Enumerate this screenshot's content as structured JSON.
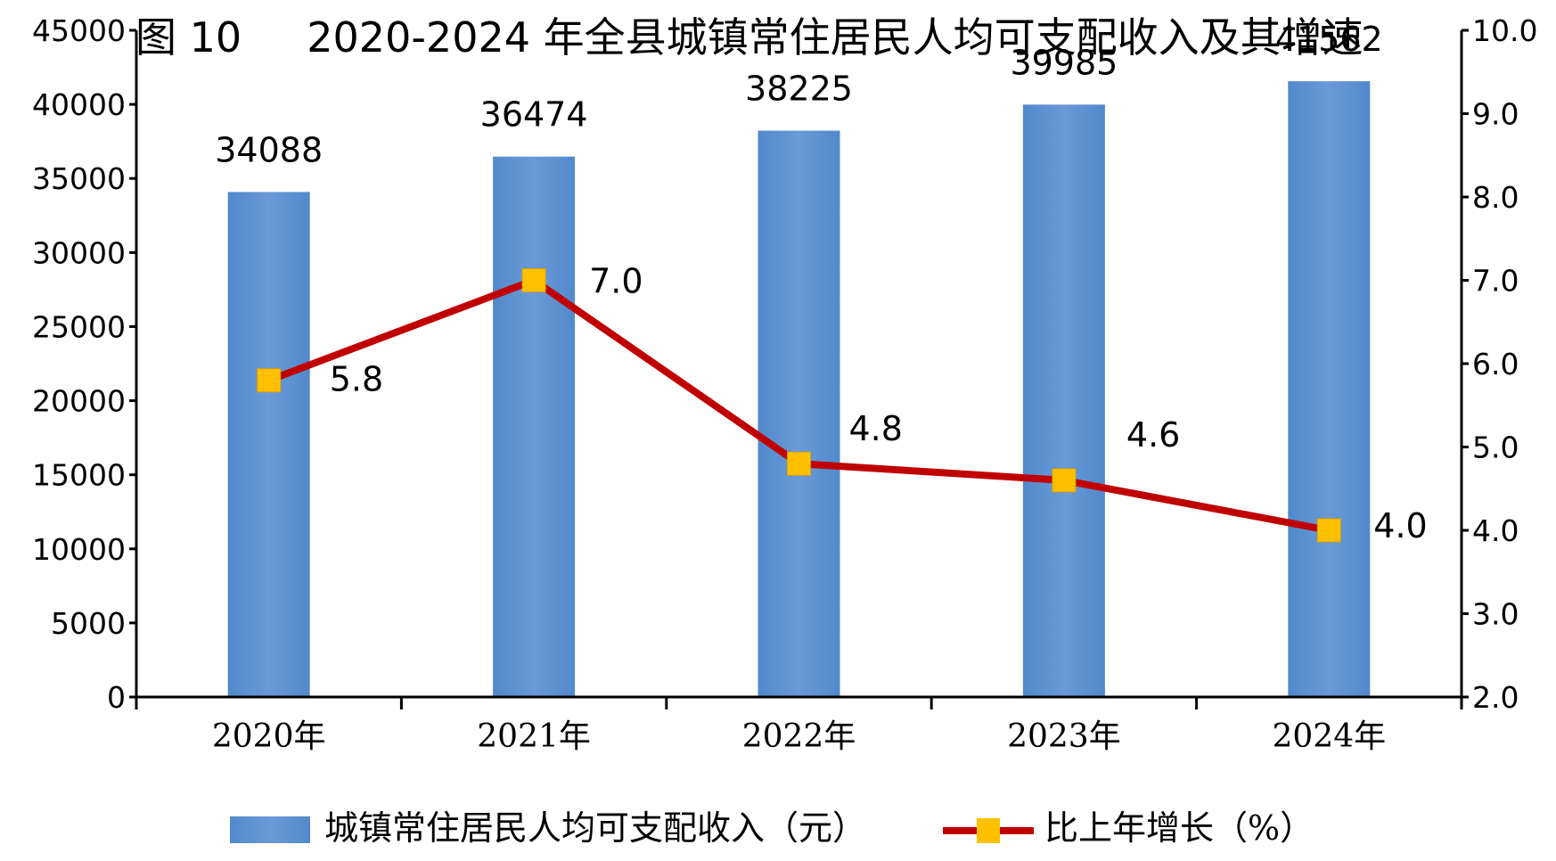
{
  "chart_data": {
    "type": "bar",
    "title": "图 10     2020-2024 年全县城镇常住居民人均可支配收入及其增速",
    "categories": [
      "2020年",
      "2021年",
      "2022年",
      "2023年",
      "2024年"
    ],
    "series": [
      {
        "name": "城镇常住居民人均可支配收入（元）",
        "type": "bar",
        "axis": "left",
        "values": [
          34088,
          36474,
          38225,
          39985,
          41562
        ],
        "labels": [
          "34088",
          "36474",
          "38225",
          "39985",
          "41562"
        ],
        "color": "#5b8fcf"
      },
      {
        "name": "比上年增长（%）",
        "type": "line",
        "axis": "right",
        "values": [
          5.8,
          7.0,
          4.8,
          4.6,
          4.0
        ],
        "labels": [
          "5.8",
          "7.0",
          "4.8",
          "4.6",
          "4.0"
        ],
        "color": "#c00000",
        "marker_color": "#ffc000"
      }
    ],
    "y_left": {
      "min": 0,
      "max": 45000,
      "ticks": [
        "0",
        "5000",
        "10000",
        "15000",
        "20000",
        "25000",
        "30000",
        "35000",
        "40000",
        "45000"
      ]
    },
    "y_right": {
      "min": 2.0,
      "max": 10.0,
      "ticks": [
        "2.0",
        "3.0",
        "4.0",
        "5.0",
        "6.0",
        "7.0",
        "8.0",
        "9.0",
        "10.0"
      ]
    },
    "grid": false,
    "legend_position": "bottom"
  }
}
